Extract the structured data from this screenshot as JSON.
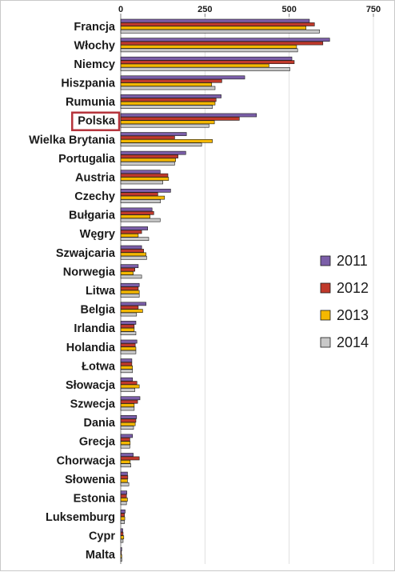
{
  "chart_data": {
    "type": "bar",
    "orientation": "horizontal",
    "title": "",
    "xlabel": "",
    "ylabel": "",
    "xlim": [
      0,
      750
    ],
    "ticks": [
      0,
      250,
      500,
      750
    ],
    "grid": true,
    "legend_position": "right",
    "highlighted_category": "Polska",
    "highlight_color": "#b5333b",
    "categories": [
      "Francja",
      "Włochy",
      "Niemcy",
      "Hiszpania",
      "Rumunia",
      "Polska",
      "Wielka Brytania",
      "Portugalia",
      "Austria",
      "Czechy",
      "Bułgaria",
      "Węgry",
      "Szwajcaria",
      "Norwegia",
      "Litwa",
      "Belgia",
      "Irlandia",
      "Holandia",
      "Łotwa",
      "Słowacja",
      "Szwecja",
      "Dania",
      "Grecja",
      "Chorwacja",
      "Słowenia",
      "Estonia",
      "Luksemburg",
      "Cypr",
      "Malta"
    ],
    "series": [
      {
        "name": "2011",
        "color": "#7b5ea8",
        "values": [
          560,
          620,
          508,
          368,
          298,
          403,
          195,
          193,
          117,
          148,
          93,
          80,
          62,
          52,
          55,
          75,
          45,
          48,
          33,
          35,
          57,
          47,
          35,
          37,
          20,
          18,
          13,
          6,
          3
        ]
      },
      {
        "name": "2012",
        "color": "#c0392b",
        "values": [
          575,
          600,
          515,
          300,
          283,
          352,
          160,
          170,
          140,
          110,
          98,
          62,
          68,
          42,
          52,
          52,
          40,
          43,
          33,
          48,
          50,
          45,
          27,
          55,
          21,
          17,
          11,
          7,
          2
        ]
      },
      {
        "name": "2013",
        "color": "#f5b800",
        "values": [
          550,
          522,
          440,
          270,
          280,
          278,
          272,
          163,
          142,
          130,
          87,
          52,
          75,
          37,
          55,
          65,
          40,
          45,
          35,
          55,
          40,
          43,
          28,
          28,
          20,
          20,
          12,
          9,
          3
        ]
      },
      {
        "name": "2014",
        "color": "#c8c8c8",
        "values": [
          590,
          525,
          502,
          280,
          272,
          262,
          240,
          160,
          125,
          118,
          117,
          83,
          77,
          62,
          55,
          47,
          45,
          45,
          35,
          42,
          40,
          38,
          27,
          30,
          24,
          17,
          11,
          7,
          3
        ]
      }
    ]
  }
}
